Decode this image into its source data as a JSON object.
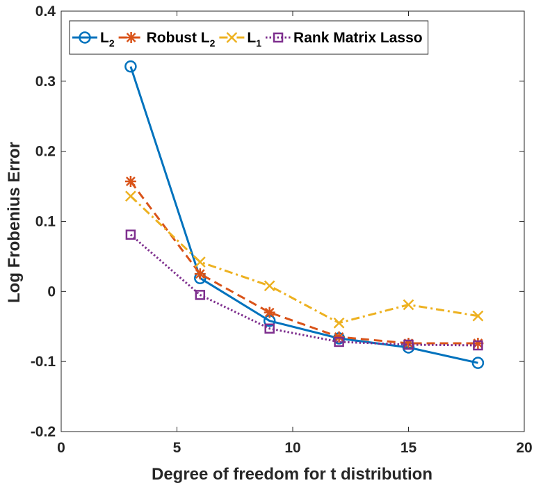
{
  "chart_data": {
    "type": "line",
    "title": "",
    "xlabel": "Degree of freedom for t distribution",
    "ylabel": "Log Frobenius Error",
    "xlim": [
      0,
      20
    ],
    "ylim": [
      -0.2,
      0.4
    ],
    "xticks": [
      0,
      5,
      10,
      15,
      20
    ],
    "yticks": [
      -0.2,
      -0.1,
      0,
      0.1,
      0.2,
      0.3,
      0.4
    ],
    "xtick_labels": [
      "0",
      "5",
      "10",
      "15",
      "20"
    ],
    "ytick_labels": [
      "-0.2",
      "-0.1",
      "0",
      "0.1",
      "0.2",
      "0.3",
      "0.4"
    ],
    "grid": false,
    "legend_position": "top",
    "x": [
      3,
      6,
      9,
      12,
      15,
      18
    ],
    "series": [
      {
        "name": "L",
        "subscript": "2",
        "marker": "circle",
        "line": "solid",
        "color": "#0072BD",
        "values": [
          0.321,
          0.019,
          -0.042,
          -0.067,
          -0.08,
          -0.102
        ]
      },
      {
        "name": "Robust L",
        "subscript": "2",
        "marker": "asterisk",
        "line": "dashed",
        "color": "#D95319",
        "values": [
          0.157,
          0.025,
          -0.03,
          -0.065,
          -0.074,
          -0.074
        ]
      },
      {
        "name": "L",
        "subscript": "1",
        "marker": "x",
        "line": "dashdot",
        "color": "#EDB120",
        "values": [
          0.136,
          0.042,
          0.008,
          -0.045,
          -0.019,
          -0.035
        ]
      },
      {
        "name": "Rank Matrix Lasso",
        "subscript": "",
        "marker": "square",
        "line": "dotted",
        "color": "#7E2F8E",
        "values": [
          0.081,
          -0.005,
          -0.053,
          -0.072,
          -0.076,
          -0.077
        ]
      }
    ]
  }
}
